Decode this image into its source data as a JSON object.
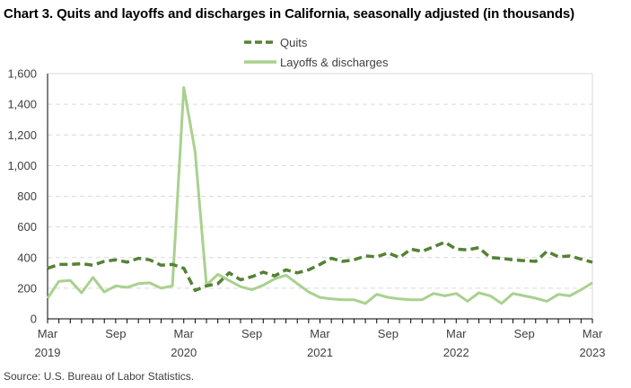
{
  "chart_data": {
    "type": "line",
    "title": "Chart 3. Quits and layoffs and discharges in California, seasonally adjusted (in thousands)",
    "xlabel": "",
    "ylabel": "",
    "ylim": [
      0,
      1600
    ],
    "yticks": [
      0,
      200,
      400,
      600,
      800,
      1000,
      1200,
      1400,
      1600
    ],
    "ytick_labels": [
      "0",
      "200",
      "400",
      "600",
      "800",
      "1,000",
      "1,200",
      "1,400",
      "1,600"
    ],
    "grid": "horizontal dashed",
    "legend_position": "top-center",
    "x": [
      "Mar 2019",
      "Apr 2019",
      "May 2019",
      "Jun 2019",
      "Jul 2019",
      "Aug 2019",
      "Sep 2019",
      "Oct 2019",
      "Nov 2019",
      "Dec 2019",
      "Jan 2020",
      "Feb 2020",
      "Mar 2020",
      "Apr 2020",
      "May 2020",
      "Jun 2020",
      "Jul 2020",
      "Aug 2020",
      "Sep 2020",
      "Oct 2020",
      "Nov 2020",
      "Dec 2020",
      "Jan 2021",
      "Feb 2021",
      "Mar 2021",
      "Apr 2021",
      "May 2021",
      "Jun 2021",
      "Jul 2021",
      "Aug 2021",
      "Sep 2021",
      "Oct 2021",
      "Nov 2021",
      "Dec 2021",
      "Jan 2022",
      "Feb 2022",
      "Mar 2022",
      "Apr 2022",
      "May 2022",
      "Jun 2022",
      "Jul 2022",
      "Aug 2022",
      "Sep 2022",
      "Oct 2022",
      "Nov 2022",
      "Dec 2022",
      "Jan 2023",
      "Feb 2023",
      "Mar 2023"
    ],
    "xtick_labels": [
      {
        "index": 0,
        "month": "Mar",
        "year": "2019"
      },
      {
        "index": 6,
        "month": "Sep",
        "year": ""
      },
      {
        "index": 12,
        "month": "Mar",
        "year": "2020"
      },
      {
        "index": 18,
        "month": "Sep",
        "year": ""
      },
      {
        "index": 24,
        "month": "Mar",
        "year": "2021"
      },
      {
        "index": 30,
        "month": "Sep",
        "year": ""
      },
      {
        "index": 36,
        "month": "Mar",
        "year": "2022"
      },
      {
        "index": 42,
        "month": "Sep",
        "year": ""
      },
      {
        "index": 48,
        "month": "Mar",
        "year": "2023"
      }
    ],
    "series": [
      {
        "name": "Quits",
        "color": "#548235",
        "style": "dashed",
        "values": [
          330,
          355,
          355,
          360,
          350,
          375,
          385,
          370,
          395,
          385,
          350,
          355,
          330,
          185,
          215,
          230,
          300,
          255,
          275,
          305,
          280,
          320,
          300,
          320,
          355,
          395,
          375,
          385,
          410,
          405,
          430,
          400,
          455,
          440,
          470,
          500,
          455,
          450,
          465,
          400,
          395,
          385,
          380,
          375,
          440,
          405,
          410,
          390,
          370
        ]
      },
      {
        "name": "Layoffs & discharges",
        "color": "#a9d18e",
        "style": "solid",
        "values": [
          135,
          245,
          250,
          170,
          270,
          175,
          215,
          205,
          230,
          235,
          200,
          215,
          1510,
          1090,
          220,
          290,
          250,
          210,
          190,
          220,
          260,
          285,
          230,
          175,
          140,
          130,
          125,
          125,
          100,
          160,
          140,
          130,
          125,
          125,
          165,
          150,
          165,
          115,
          170,
          150,
          100,
          165,
          150,
          135,
          115,
          160,
          150,
          190,
          235
        ]
      }
    ]
  },
  "source": "Source: U.S. Bureau of Labor Statistics."
}
